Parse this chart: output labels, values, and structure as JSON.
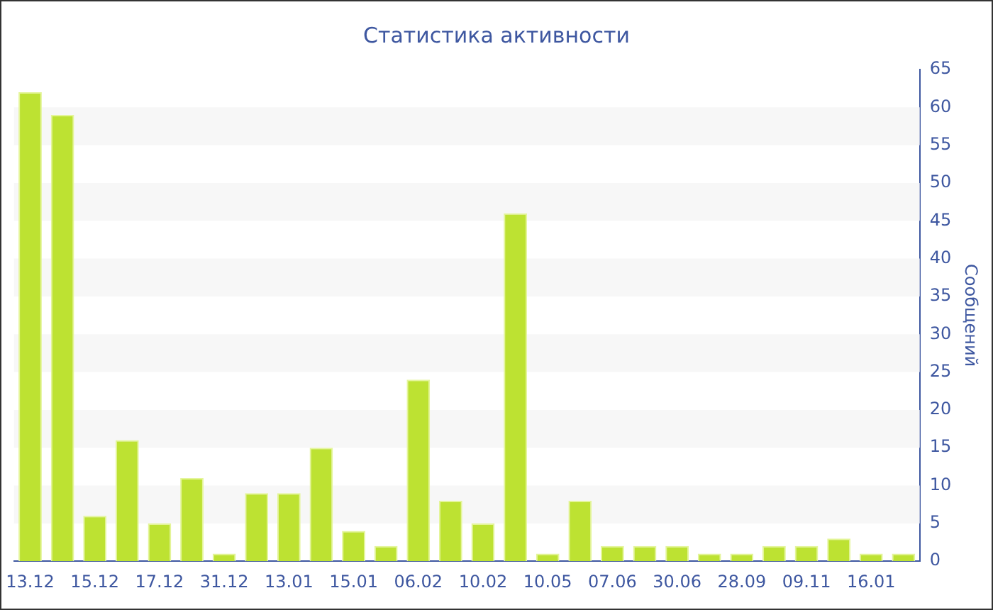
{
  "chart_data": {
    "type": "bar",
    "title": "Статистика активности",
    "ylabel": "Сообщений",
    "categories": [
      "13.12",
      null,
      "15.12",
      null,
      "17.12",
      null,
      "31.12",
      null,
      "13.01",
      null,
      "15.01",
      null,
      "06.02",
      null,
      "10.02",
      null,
      "10.05",
      null,
      "07.06",
      null,
      "30.06",
      null,
      "28.09",
      null,
      "09.11",
      null,
      "16.01",
      null
    ],
    "values": [
      62,
      59,
      6,
      16,
      5,
      11,
      1,
      9,
      9,
      15,
      4,
      2,
      24,
      8,
      5,
      46,
      1,
      8,
      2,
      2,
      2,
      1,
      1,
      2,
      2,
      3,
      1,
      1
    ],
    "color": "#bde232",
    "ylim": [
      0,
      65
    ],
    "yticks": [
      0,
      5,
      10,
      15,
      20,
      25,
      30,
      35,
      40,
      45,
      50,
      55,
      60,
      65
    ],
    "legend": false
  }
}
